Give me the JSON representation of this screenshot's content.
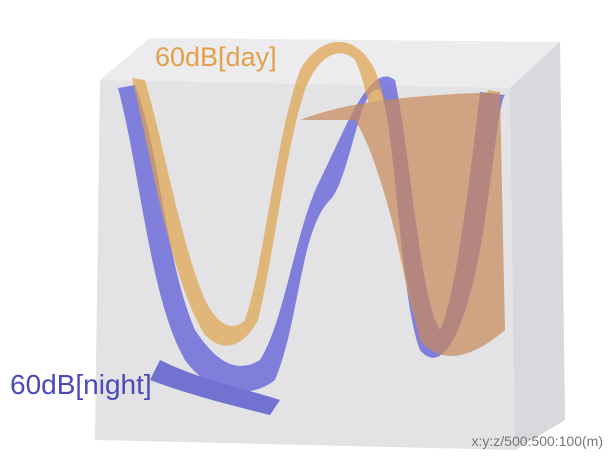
{
  "labels": {
    "day": "60dB[day]",
    "night": "60dB[night]"
  },
  "scale": "x:y:z/500:500:100(m)"
}
